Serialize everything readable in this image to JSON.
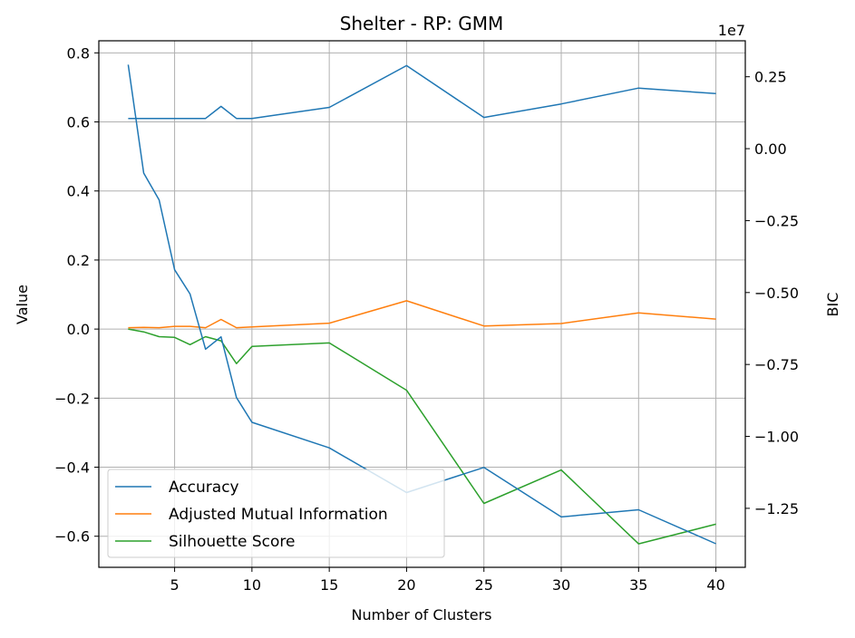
{
  "chart_data": {
    "type": "line",
    "title": "Shelter - RP: GMM",
    "xlabel": "Number of Clusters",
    "ylabel": "Value",
    "y2label": "BIC",
    "y2_offset_label": "1e7",
    "x": [
      2,
      3,
      4,
      5,
      6,
      7,
      8,
      9,
      10,
      15,
      20,
      25,
      30,
      35,
      40
    ],
    "xticks": [
      5,
      10,
      15,
      20,
      25,
      30,
      35,
      40
    ],
    "xlim": [
      0.1,
      41.9
    ],
    "ylim": [
      -0.69,
      0.835
    ],
    "yticks": [
      -0.6,
      -0.4,
      -0.2,
      0.0,
      0.2,
      0.4,
      0.6,
      0.8
    ],
    "ytick_labels": [
      "−0.6",
      "−0.4",
      "−0.2",
      "0.0",
      "0.2",
      "0.4",
      "0.6",
      "0.8"
    ],
    "y2lim": [
      -1.455,
      0.375
    ],
    "y2ticks": [
      -1.25,
      -1.0,
      -0.75,
      -0.5,
      -0.25,
      0.0,
      0.25
    ],
    "y2tick_labels": [
      "−1.25",
      "−1.00",
      "−0.75",
      "−0.50",
      "−0.25",
      "0.00",
      "0.25"
    ],
    "grid": true,
    "legend_position": "lower-left",
    "series": [
      {
        "name": "Accuracy",
        "color": "#1f77b4",
        "axis": "left",
        "values": [
          0.61,
          0.61,
          0.61,
          0.61,
          0.61,
          0.61,
          0.645,
          0.61,
          0.61,
          0.642,
          0.763,
          0.613,
          0.652,
          0.698,
          0.682
        ]
      },
      {
        "name": "Adjusted Mutual Information",
        "color": "#ff7f0e",
        "axis": "left",
        "values": [
          0.004,
          0.005,
          0.004,
          0.008,
          0.008,
          0.004,
          0.028,
          0.004,
          0.006,
          0.017,
          0.082,
          0.009,
          0.016,
          0.047,
          0.029
        ]
      },
      {
        "name": "Silhouette Score",
        "color": "#2ca02c",
        "axis": "left",
        "values": [
          0.0,
          -0.008,
          -0.022,
          -0.024,
          -0.045,
          -0.022,
          -0.034,
          -0.1,
          -0.05,
          -0.04,
          -0.177,
          -0.505,
          -0.408,
          -0.622,
          -0.565
        ]
      },
      {
        "name": "BIC",
        "color": "#1f77b4",
        "axis": "right",
        "values": [
          0.292,
          -0.085,
          -0.178,
          -0.421,
          -0.505,
          -0.697,
          -0.654,
          -0.865,
          -0.951,
          -1.04,
          -1.195,
          -1.108,
          -1.28,
          -1.255,
          -1.373
        ]
      }
    ]
  }
}
